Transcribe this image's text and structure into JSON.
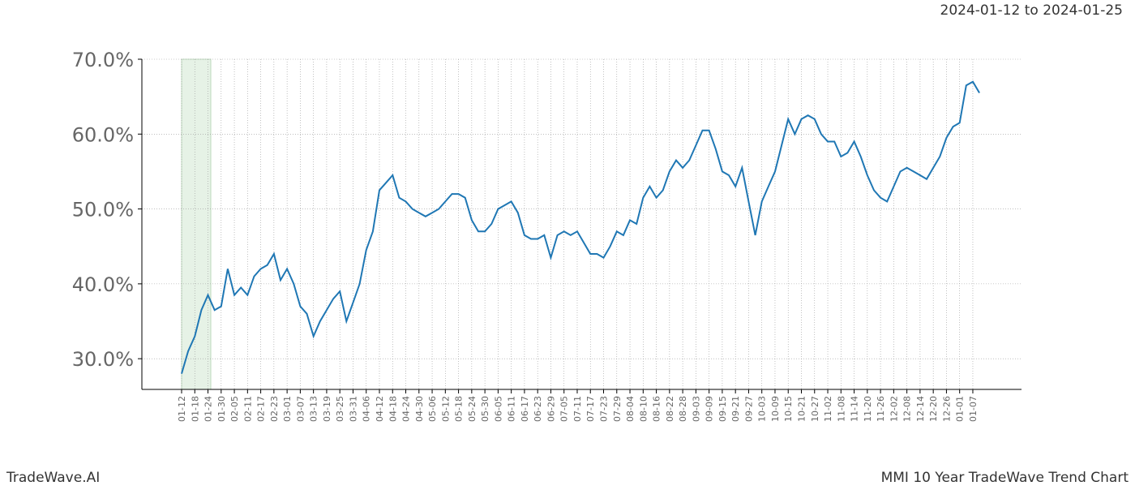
{
  "chart_data": {
    "type": "line",
    "title": "MMI 10 Year TradeWave Trend Chart",
    "subtitle": "2024-01-12 to 2024-01-25",
    "source": "TradeWave.AI",
    "color": "#1f77b4",
    "grid": true,
    "categories": [
      "01-12",
      null,
      "01-18",
      null,
      "01-24",
      null,
      "01-30",
      null,
      "02-05",
      null,
      "02-11",
      null,
      "02-17",
      null,
      "02-23",
      null,
      "03-01",
      null,
      "03-07",
      null,
      "03-13",
      null,
      "03-19",
      null,
      "03-25",
      null,
      "03-31",
      null,
      "04-06",
      null,
      "04-12",
      null,
      "04-18",
      null,
      "04-24",
      null,
      "04-30",
      null,
      "05-06",
      null,
      "05-12",
      null,
      "05-18",
      null,
      "05-24",
      null,
      "05-30",
      null,
      "06-05",
      null,
      "06-11",
      null,
      "06-17",
      null,
      "06-23",
      null,
      "06-29",
      null,
      "07-05",
      null,
      "07-11",
      null,
      "07-17",
      null,
      "07-23",
      null,
      "07-29",
      null,
      "08-04",
      null,
      "08-10",
      null,
      "08-16",
      null,
      "08-22",
      null,
      "08-28",
      null,
      "09-03",
      null,
      "09-09",
      null,
      "09-15",
      null,
      "09-21",
      null,
      "09-27",
      null,
      "10-03",
      null,
      "10-09",
      null,
      "10-15",
      null,
      "10-21",
      null,
      "10-27",
      null,
      "11-02",
      null,
      "11-08",
      null,
      "11-14",
      null,
      "11-20",
      null,
      "11-26",
      null,
      "12-02",
      null,
      "12-08",
      null,
      "12-14",
      null,
      "12-20",
      null,
      "12-26",
      null,
      "01-01",
      null,
      "01-07",
      null
    ],
    "values": [
      28.0,
      31.0,
      33.0,
      36.5,
      38.5,
      36.5,
      37.0,
      42.0,
      38.5,
      39.5,
      38.5,
      41.0,
      42.0,
      42.5,
      44.0,
      40.5,
      42.0,
      40.0,
      37.0,
      36.0,
      33.0,
      35.0,
      36.5,
      38.0,
      39.0,
      35.0,
      37.5,
      40.0,
      44.5,
      47.0,
      52.5,
      53.5,
      54.5,
      51.5,
      51.0,
      50.0,
      49.5,
      49.0,
      49.5,
      50.0,
      51.0,
      52.0,
      52.0,
      51.5,
      48.5,
      47.0,
      47.0,
      48.0,
      50.0,
      50.5,
      51.0,
      49.5,
      46.5,
      46.0,
      46.0,
      46.5,
      43.5,
      46.5,
      47.0,
      46.5,
      47.0,
      45.5,
      44.0,
      44.0,
      43.5,
      45.0,
      47.0,
      46.5,
      48.5,
      48.0,
      51.5,
      53.0,
      51.5,
      52.5,
      55.0,
      56.5,
      55.5,
      56.5,
      58.5,
      60.5,
      60.5,
      58.0,
      55.0,
      54.5,
      53.0,
      55.5,
      51.0,
      46.5,
      51.0,
      53.0,
      55.0,
      58.5,
      62.0,
      60.0,
      62.0,
      62.5,
      62.0,
      60.0,
      59.0,
      59.0,
      57.0,
      57.5,
      59.0,
      57.0,
      54.5,
      52.5,
      51.5,
      51.0,
      53.0,
      55.0,
      55.5,
      55.0,
      54.5,
      54.0,
      55.5,
      57.0,
      59.5,
      61.0,
      61.5,
      66.5,
      67.0,
      65.5
    ],
    "ylim": [
      25.9,
      70
    ],
    "yticks": [
      {
        "value": 30,
        "label": "30.0%"
      },
      {
        "value": 40,
        "label": "40.0%"
      },
      {
        "value": 50,
        "label": "50.0%"
      },
      {
        "value": 60,
        "label": "60.0%"
      },
      {
        "value": 70,
        "label": "70.0%"
      }
    ]
  }
}
